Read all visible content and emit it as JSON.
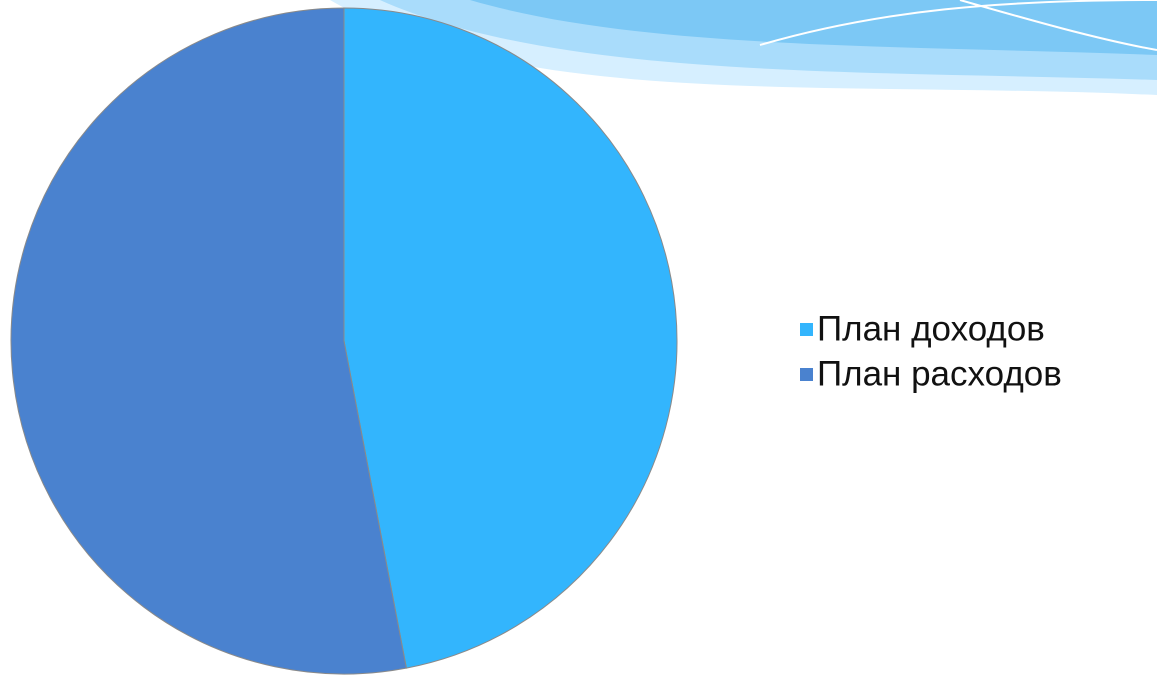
{
  "chart_data": {
    "type": "pie",
    "categories": [
      "План доходов",
      "План расходов"
    ],
    "values": [
      47,
      53
    ],
    "colors": [
      "#33b5fd",
      "#4a82cf"
    ],
    "legend": "right"
  }
}
